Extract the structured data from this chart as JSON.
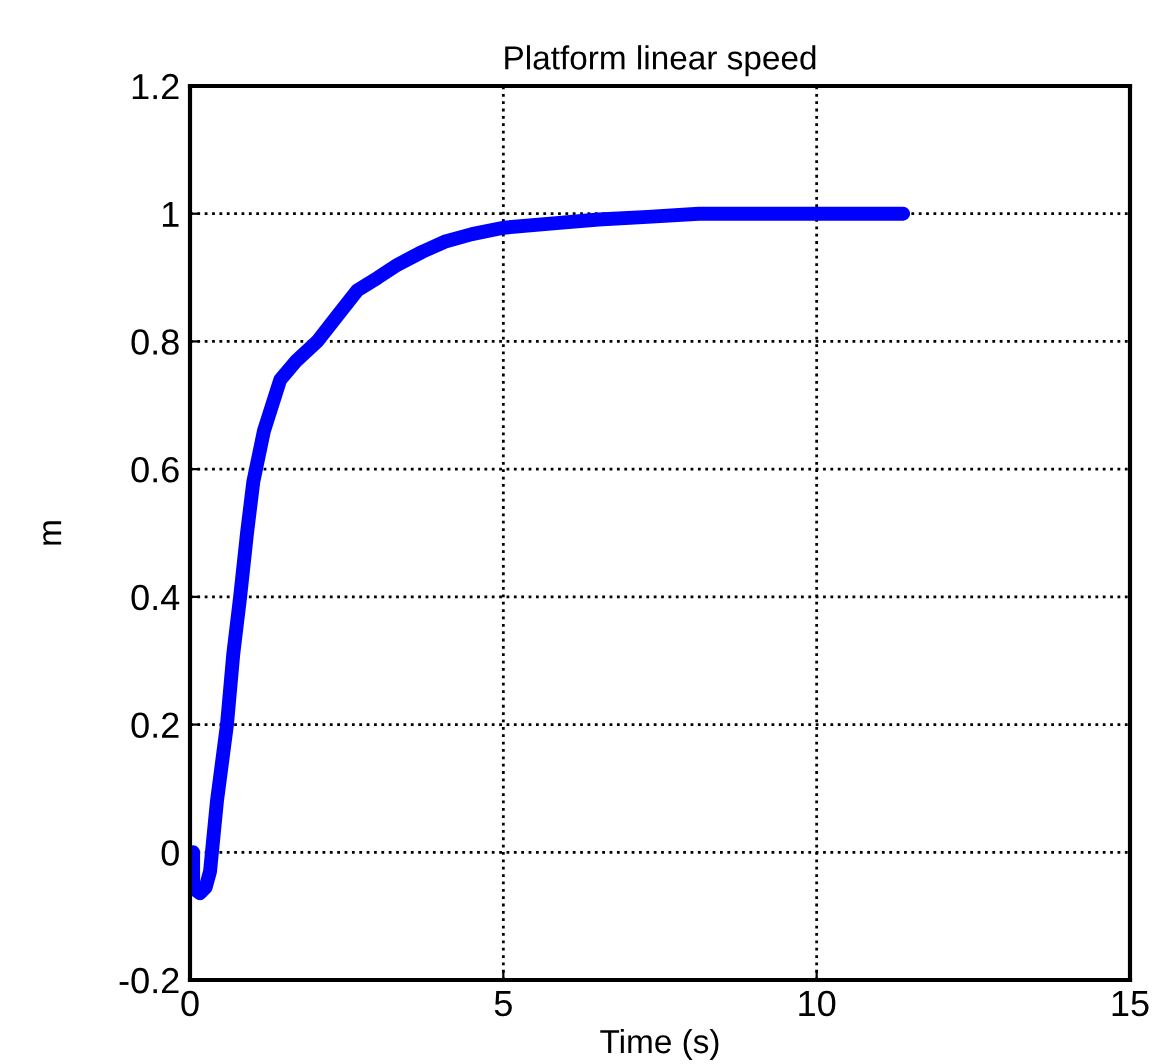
{
  "chart_data": {
    "type": "line",
    "title": "Platform linear speed",
    "xlabel": "Time (s)",
    "ylabel": "m",
    "series": [
      {
        "color": "#0000ff",
        "x": [
          0.05,
          0.05,
          0.1,
          0.16,
          0.25,
          0.32,
          0.43,
          0.59,
          0.69,
          0.8,
          0.91,
          1.01,
          1.18,
          1.44,
          1.7,
          2.03,
          2.35,
          2.67,
          3.0,
          3.31,
          3.7,
          4.06,
          4.5,
          5.0,
          5.8,
          6.52,
          7.3,
          8.12,
          9.5,
          11.38
        ],
        "values": [
          0.0,
          -0.05,
          -0.06,
          -0.064,
          -0.055,
          -0.03,
          0.08,
          0.2,
          0.31,
          0.4,
          0.5,
          0.58,
          0.66,
          0.74,
          0.77,
          0.8,
          0.84,
          0.88,
          0.9,
          0.92,
          0.94,
          0.956,
          0.968,
          0.978,
          0.985,
          0.991,
          0.995,
          1.0,
          1.0,
          1.0
        ]
      }
    ],
    "xlim": [
      0,
      15
    ],
    "xticks": [
      0,
      5,
      10,
      15
    ],
    "ylim": [
      -0.2,
      1.2
    ],
    "yticks": [
      -0.2,
      0,
      0.2,
      0.4,
      0.6,
      0.8,
      1,
      1.2
    ],
    "grid": true,
    "line_style": "solid"
  }
}
